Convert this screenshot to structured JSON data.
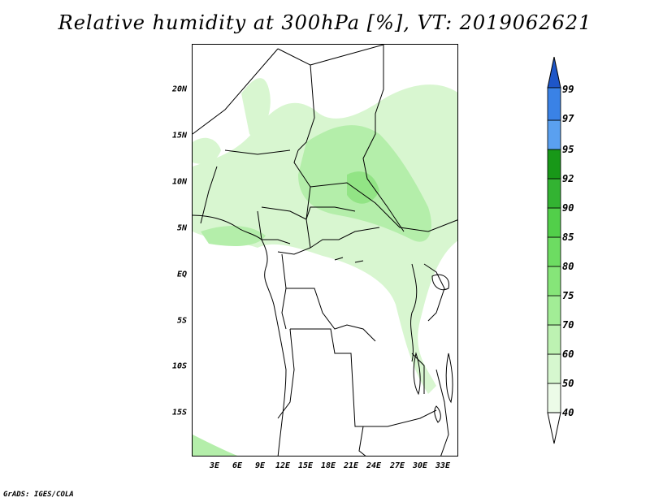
{
  "title": "Relative humidity at 300hPa [%], VT: 2019062621",
  "credit": "GrADS: IGES/COLA",
  "map": {
    "lat_labels": [
      "20N",
      "15N",
      "10N",
      "5N",
      "EQ",
      "5S",
      "10S",
      "15S"
    ],
    "lon_labels": [
      "3E",
      "6E",
      "9E",
      "12E",
      "15E",
      "18E",
      "21E",
      "24E",
      "27E",
      "30E",
      "33E"
    ]
  },
  "colorbar": {
    "levels": [
      "40",
      "50",
      "60",
      "70",
      "75",
      "80",
      "85",
      "90",
      "92",
      "95",
      "97",
      "99"
    ],
    "colors": [
      "#ecfbe8",
      "#d6f7cf",
      "#bdf2b2",
      "#a2ed96",
      "#86e579",
      "#6ddc62",
      "#52cf4a",
      "#33b332",
      "#189818",
      "#5aa0f0",
      "#3a82e6",
      "#2266d6"
    ],
    "top_arrow_color": "#1e56c8",
    "bottom_arrow_color": "#ffffff"
  },
  "colors": {
    "land_line": "#000000",
    "light_green": "#d8f6d0",
    "mid_green": "#b4eeaa",
    "dark_green": "#92e485"
  }
}
